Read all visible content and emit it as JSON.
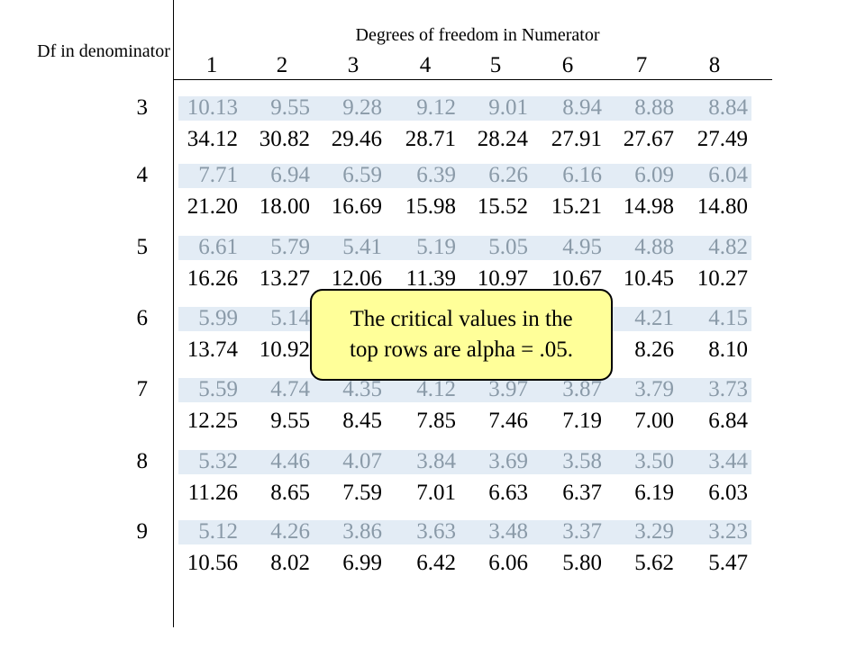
{
  "header": {
    "df_label": "Df in denominator",
    "numerator_title": "Degrees of freedom in Numerator",
    "columns": [
      "1",
      "2",
      "3",
      "4",
      "5",
      "6",
      "7",
      "8"
    ]
  },
  "rows": [
    {
      "df": "3",
      "alpha05": [
        "10.13",
        "9.55",
        "9.28",
        "9.12",
        "9.01",
        "8.94",
        "8.88",
        "8.84"
      ],
      "alpha01": [
        "34.12",
        "30.82",
        "29.46",
        "28.71",
        "28.24",
        "27.91",
        "27.67",
        "27.49"
      ]
    },
    {
      "df": "4",
      "alpha05": [
        "7.71",
        "6.94",
        "6.59",
        "6.39",
        "6.26",
        "6.16",
        "6.09",
        "6.04"
      ],
      "alpha01": [
        "21.20",
        "18.00",
        "16.69",
        "15.98",
        "15.52",
        "15.21",
        "14.98",
        "14.80"
      ]
    },
    {
      "df": "5",
      "alpha05": [
        "6.61",
        "5.79",
        "5.41",
        "5.19",
        "5.05",
        "4.95",
        "4.88",
        "4.82"
      ],
      "alpha01": [
        "16.26",
        "13.27",
        "12.06",
        "11.39",
        "10.97",
        "10.67",
        "10.45",
        "10.27"
      ]
    },
    {
      "df": "6",
      "alpha05": [
        "5.99",
        "5.14",
        "",
        "",
        "",
        "",
        "4.21",
        "4.15"
      ],
      "alpha01": [
        "13.74",
        "10.92",
        "",
        "",
        "",
        "",
        "8.26",
        "8.10"
      ]
    },
    {
      "df": "7",
      "alpha05": [
        "5.59",
        "4.74",
        "4.35",
        "4.12",
        "3.97",
        "3.87",
        "3.79",
        "3.73"
      ],
      "alpha01": [
        "12.25",
        "9.55",
        "8.45",
        "7.85",
        "7.46",
        "7.19",
        "7.00",
        "6.84"
      ]
    },
    {
      "df": "8",
      "alpha05": [
        "5.32",
        "4.46",
        "4.07",
        "3.84",
        "3.69",
        "3.58",
        "3.50",
        "3.44"
      ],
      "alpha01": [
        "11.26",
        "8.65",
        "7.59",
        "7.01",
        "6.63",
        "6.37",
        "6.19",
        "6.03"
      ]
    },
    {
      "df": "9",
      "alpha05": [
        "5.12",
        "4.26",
        "3.86",
        "3.63",
        "3.48",
        "3.37",
        "3.29",
        "3.23"
      ],
      "alpha01": [
        "10.56",
        "8.02",
        "6.99",
        "6.42",
        "6.06",
        "5.80",
        "5.62",
        "5.47"
      ]
    }
  ],
  "callout": {
    "line1": "The critical values in the",
    "line2": "top rows are alpha = .05."
  },
  "colors": {
    "top_row_text": "#8a9aa8",
    "top_row_band": "#e3ecf5",
    "callout_fill": "#ffff99"
  }
}
